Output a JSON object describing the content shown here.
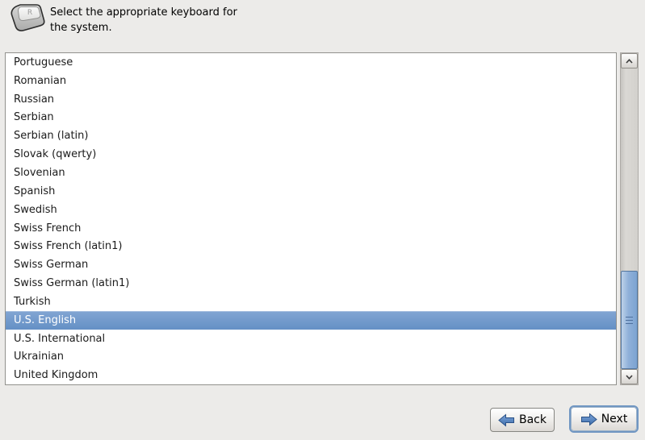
{
  "header": {
    "icon": "keyboard-key-icon",
    "instruction_line1": "Select the appropriate keyboard for",
    "instruction_line2": "the system."
  },
  "keyboard_list": {
    "items": [
      "Portuguese",
      "Romanian",
      "Russian",
      "Serbian",
      "Serbian (latin)",
      "Slovak (qwerty)",
      "Slovenian",
      "Spanish",
      "Swedish",
      "Swiss French",
      "Swiss French (latin1)",
      "Swiss German",
      "Swiss German (latin1)",
      "Turkish",
      "U.S. English",
      "U.S. International",
      "Ukrainian",
      "United Kingdom"
    ],
    "selected_index": 14,
    "selected_item": "U.S. English"
  },
  "scrollbar": {
    "up_icon": "chevron-up-icon",
    "down_icon": "chevron-down-icon",
    "thumb": "scrollbar-thumb"
  },
  "footer": {
    "back_label": "Back",
    "back_icon": "arrow-left-icon",
    "next_label": "Next",
    "next_icon": "arrow-right-icon"
  },
  "colors": {
    "background": "#ecebe9",
    "selection_blue": "#6490c5",
    "selection_text": "#ffffff",
    "scroll_thumb_blue": "#8fb0d9",
    "arrow_blue": "#3f6fae",
    "focus_ring_blue": "#7096c2"
  }
}
